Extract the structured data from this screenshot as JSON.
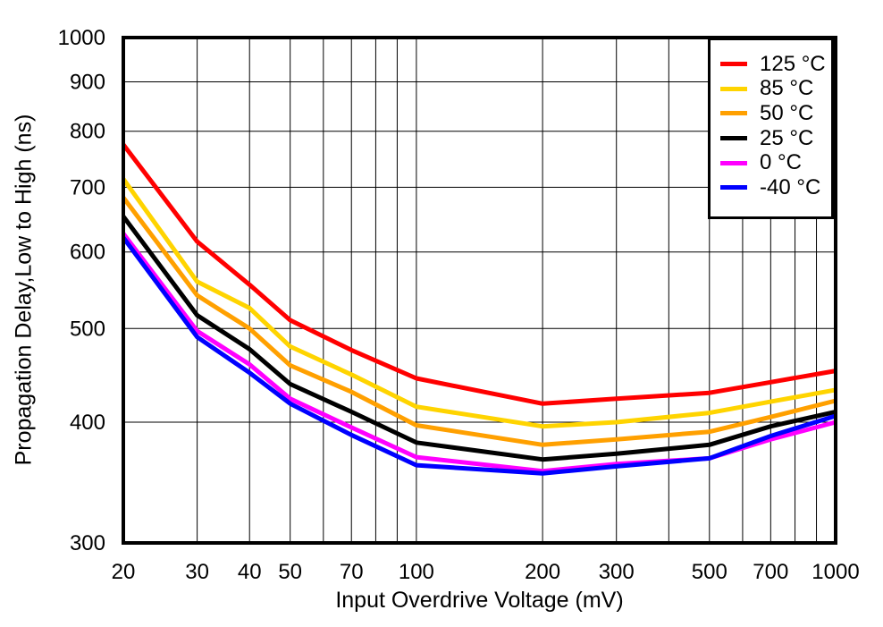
{
  "chart_data": {
    "type": "line",
    "title": "",
    "xlabel": "Input Overdrive Voltage (mV)",
    "ylabel": "Propagation Delay,Low to High (ns)",
    "x_scale": "log",
    "y_scale": "log",
    "xlim": [
      20,
      1000
    ],
    "ylim": [
      300,
      1000
    ],
    "grid": true,
    "legend_position": "top-right",
    "x": [
      20,
      30,
      40,
      50,
      70,
      100,
      200,
      300,
      500,
      700,
      1000
    ],
    "series": [
      {
        "name": "125 °C",
        "color": "#ff0000",
        "values": [
          775,
          615,
          555,
          510,
          475,
          444,
          418,
          423,
          429,
          440,
          452
        ]
      },
      {
        "name": "85 °C",
        "color": "#ffd400",
        "values": [
          714,
          559,
          525,
          479,
          448,
          415,
          396,
          400,
          409,
          420,
          432
        ]
      },
      {
        "name": "50 °C",
        "color": "#ffa000",
        "values": [
          683,
          541,
          500,
          458,
          430,
          397,
          379,
          384,
          391,
          405,
          421
        ]
      },
      {
        "name": "25 °C",
        "color": "#000000",
        "values": [
          653,
          516,
          476,
          438,
          410,
          381,
          366,
          371,
          379,
          396,
          410
        ]
      },
      {
        "name": "0 °C",
        "color": "#ff00ff",
        "values": [
          627,
          497,
          459,
          423,
          395,
          368,
          356,
          362,
          367,
          384,
          400
        ]
      },
      {
        "name": "-40 °C",
        "color": "#0000ff",
        "values": [
          621,
          490,
          450,
          418,
          388,
          361,
          354,
          360,
          367,
          387,
          406
        ]
      }
    ],
    "x_grid": [
      20,
      30,
      40,
      50,
      60,
      70,
      80,
      90,
      100,
      200,
      300,
      400,
      500,
      600,
      700,
      800,
      900,
      1000
    ],
    "y_grid": [
      300,
      400,
      500,
      600,
      700,
      800,
      900,
      1000
    ],
    "x_ticks": [
      {
        "value": 20,
        "label": "20"
      },
      {
        "value": 30,
        "label": "30"
      },
      {
        "value": 40,
        "label": "40"
      },
      {
        "value": 50,
        "label": "50"
      },
      {
        "value": 70,
        "label": "70"
      },
      {
        "value": 100,
        "label": "100"
      },
      {
        "value": 200,
        "label": "200"
      },
      {
        "value": 300,
        "label": "300"
      },
      {
        "value": 500,
        "label": "500"
      },
      {
        "value": 700,
        "label": "700"
      },
      {
        "value": 1000,
        "label": "1000"
      }
    ],
    "y_ticks": [
      {
        "value": 300,
        "label": "300"
      },
      {
        "value": 400,
        "label": "400"
      },
      {
        "value": 500,
        "label": "500"
      },
      {
        "value": 600,
        "label": "600"
      },
      {
        "value": 700,
        "label": "700"
      },
      {
        "value": 800,
        "label": "800"
      },
      {
        "value": 900,
        "label": "900"
      },
      {
        "value": 1000,
        "label": "1000"
      }
    ]
  }
}
